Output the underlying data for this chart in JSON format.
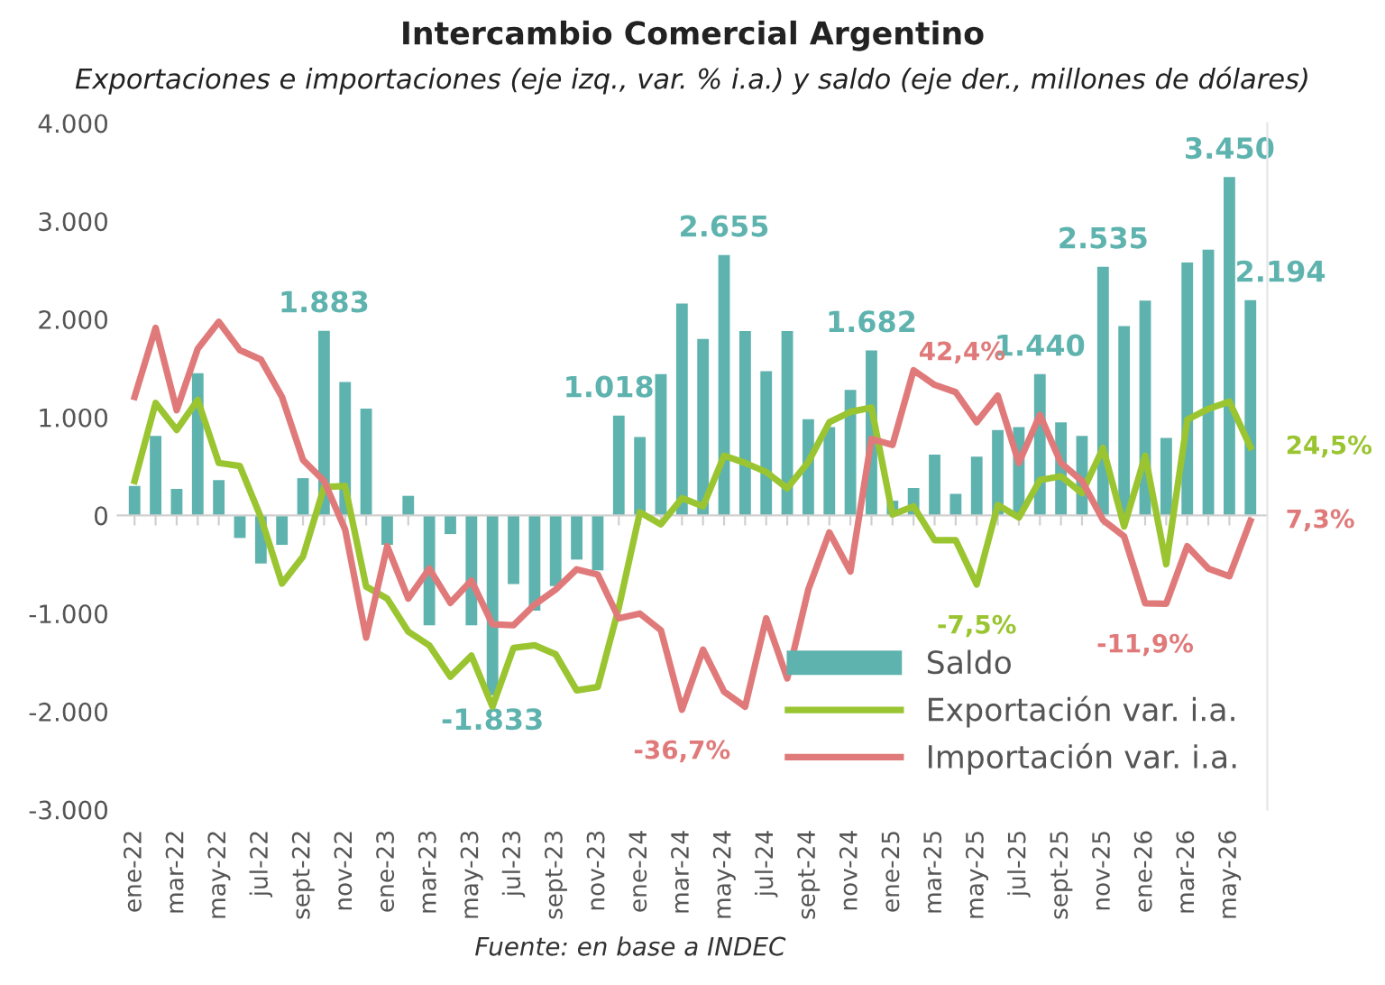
{
  "chart_data": {
    "type": "bar",
    "title": "Intercambio Comercial Argentino",
    "subtitle": "Exportaciones e importaciones (eje izq., var. % i.a.) y saldo (eje der., millones de dólares)",
    "annotations": [
      "Fuente: en base a INDEC"
    ],
    "categories": [
      "ene-22",
      null,
      "mar-22",
      null,
      "may-22",
      null,
      "jul-22",
      null,
      "sept-22",
      null,
      "nov-22",
      null,
      "ene-23",
      null,
      "mar-23",
      null,
      "may-23",
      null,
      "jul-23",
      null,
      "sept-23",
      null,
      "nov-23",
      null,
      "ene-24",
      null,
      "mar-24",
      null,
      "may-24",
      null,
      "jul-24",
      null,
      "sept-24",
      null,
      "nov-24",
      null,
      "ene-25",
      null,
      "mar-25",
      null,
      "may-25",
      null,
      "jul-25",
      null,
      "sept-25",
      null,
      "nov-25",
      null,
      "ene-26",
      null,
      "mar-26",
      null,
      "may-26",
      null
    ],
    "series": [
      {
        "name": "Saldo",
        "color": "#5fb3ae",
        "values": [
          300,
          810,
          270,
          1450,
          360,
          -230,
          -490,
          -300,
          380,
          1883,
          1360,
          1090,
          -300,
          200,
          -1120,
          -190,
          -1120,
          -1833,
          -700,
          -970,
          -720,
          -450,
          -560,
          1018,
          800,
          1440,
          2160,
          1800,
          2655,
          1880,
          1470,
          1880,
          980,
          900,
          1280,
          1682,
          150,
          280,
          620,
          220,
          600,
          870,
          900,
          1440,
          950,
          810,
          2535,
          1930,
          2190,
          790,
          2580,
          2710,
          3450,
          2194
        ],
        "value_labels": [
          null,
          null,
          null,
          null,
          null,
          null,
          null,
          null,
          null,
          "1.883",
          null,
          null,
          null,
          null,
          null,
          null,
          null,
          "-1.833",
          null,
          null,
          null,
          null,
          null,
          "1.018",
          null,
          null,
          null,
          null,
          "2.655",
          null,
          null,
          null,
          null,
          null,
          null,
          "1.682",
          null,
          null,
          null,
          null,
          null,
          null,
          null,
          "1.440",
          null,
          null,
          "2.535",
          null,
          null,
          null,
          null,
          null,
          "3.450",
          "2.194"
        ]
      },
      {
        "name": "Exportación var. i.a.",
        "type": "line",
        "axis": "y2",
        "color": "#9ac531",
        "values": [
          16.6,
          34.8,
          28.5,
          35.5,
          20.8,
          20.1,
          8.1,
          -7.3,
          -1.0,
          15.2,
          15.4,
          -8.0,
          -10.8,
          -18.5,
          -21.7,
          -29.0,
          -24.1,
          -36.0,
          -22.3,
          -21.7,
          -23.8,
          -32.2,
          -31.4,
          -12.9,
          9.3,
          6.5,
          12.6,
          10.7,
          22.5,
          20.8,
          18.7,
          14.9,
          21.0,
          30.3,
          32.7,
          33.7,
          8.8,
          10.7,
          2.8,
          2.8,
          -7.5,
          11.0,
          8.1,
          16.8,
          17.7,
          13.8,
          24.3,
          6.0,
          22.5,
          -2.8,
          30.9,
          33.4,
          35.1,
          24.5
        ],
        "value_labels": [
          null,
          null,
          null,
          null,
          null,
          null,
          null,
          null,
          null,
          null,
          null,
          null,
          null,
          null,
          null,
          null,
          null,
          null,
          null,
          null,
          null,
          null,
          null,
          null,
          null,
          null,
          null,
          null,
          null,
          null,
          null,
          null,
          null,
          null,
          null,
          null,
          null,
          null,
          null,
          null,
          "-7,5%",
          null,
          null,
          null,
          null,
          null,
          null,
          null,
          null,
          null,
          null,
          null,
          null,
          "24,5%"
        ]
      },
      {
        "name": "Importación var. i.a.",
        "type": "line",
        "axis": "y2",
        "color": "#e07a7a",
        "values": [
          36.2,
          52.3,
          33.1,
          47.4,
          53.7,
          47.1,
          44.9,
          36.2,
          21.5,
          16.6,
          5.3,
          -19.9,
          1.4,
          -10.8,
          -3.8,
          -11.8,
          -6.6,
          -16.8,
          -17.0,
          -12.2,
          -8.7,
          -4.0,
          -5.2,
          -15.4,
          -14.3,
          -18.2,
          -36.7,
          -22.7,
          -32.5,
          -36.0,
          -15.4,
          -29.4,
          -8.7,
          4.6,
          -4.5,
          26.4,
          25.0,
          42.4,
          39.0,
          37.3,
          30.3,
          36.5,
          20.8,
          32.0,
          20.8,
          16.6,
          7.5,
          3.7,
          -11.9,
          -12.0,
          1.4,
          -3.8,
          -5.6,
          7.3
        ],
        "value_labels": [
          null,
          null,
          null,
          null,
          null,
          null,
          null,
          null,
          null,
          null,
          null,
          null,
          null,
          null,
          null,
          null,
          null,
          null,
          null,
          null,
          null,
          null,
          null,
          null,
          null,
          null,
          "-36,7%",
          null,
          null,
          null,
          null,
          null,
          null,
          null,
          null,
          null,
          null,
          "42,4%",
          null,
          null,
          null,
          null,
          null,
          null,
          null,
          null,
          null,
          null,
          "-11,9%",
          null,
          null,
          null,
          null,
          "7,3%"
        ]
      }
    ],
    "ylim": [
      -3000,
      4000
    ],
    "yticks": [
      {
        "value": 4000,
        "label": "4.000"
      },
      {
        "value": 3000,
        "label": "3.000"
      },
      {
        "value": 2000,
        "label": "2.000"
      },
      {
        "value": 1000,
        "label": "1.000"
      },
      {
        "value": 0,
        "label": "0"
      },
      {
        "value": -1000,
        "label": "-1.000"
      },
      {
        "value": -2000,
        "label": "-2.000"
      },
      {
        "value": -3000,
        "label": "-3.000"
      }
    ],
    "y2lim": [
      -60,
      100
    ],
    "legend": "bottom right",
    "marker": "none",
    "line_style": "solid"
  }
}
